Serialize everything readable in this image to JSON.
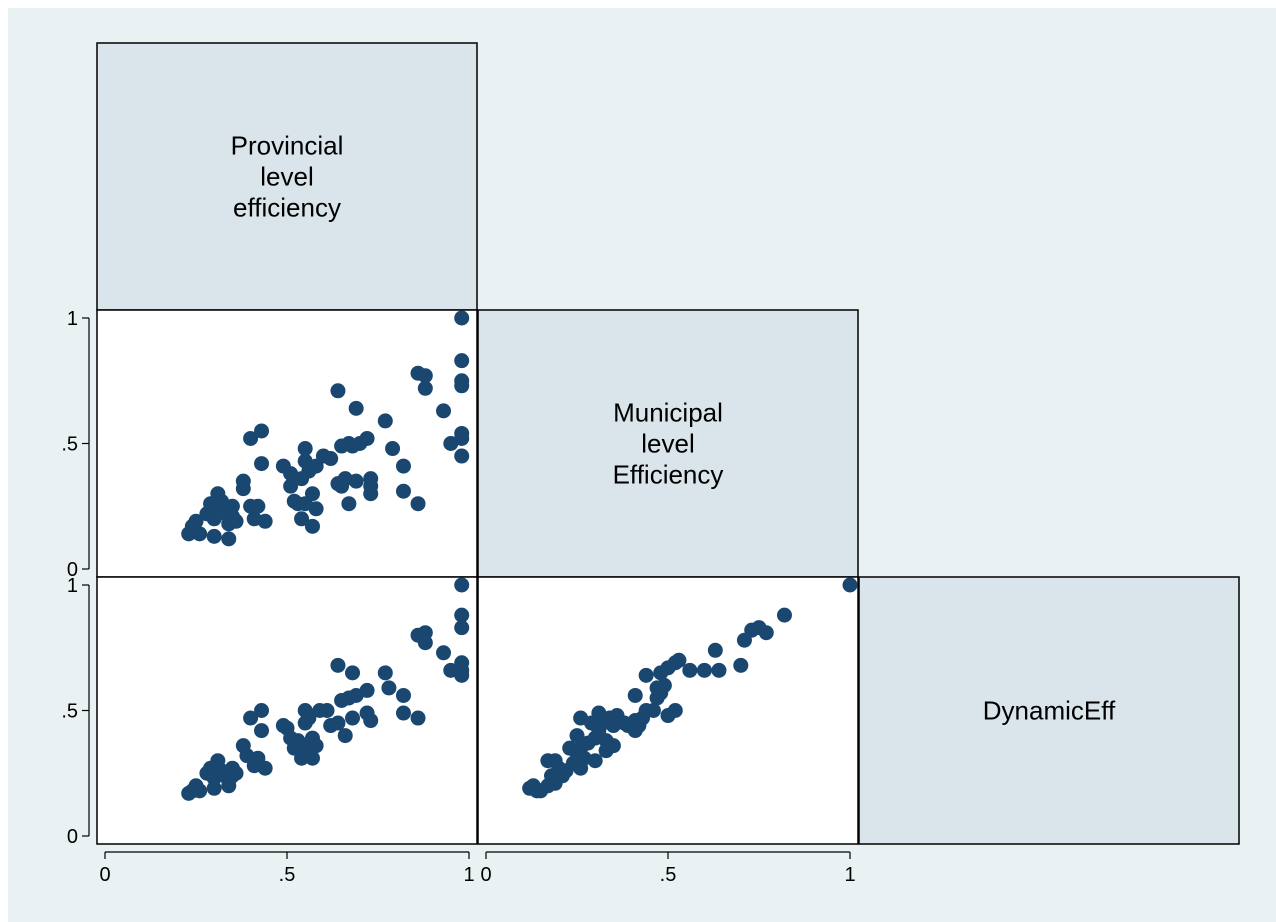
{
  "colors": {
    "background": "#eaf1f3",
    "diagonal_cell": "#d9e5ea",
    "marker": "#1a476f",
    "cell_border": "#000000"
  },
  "chart_data": {
    "type": "scatter",
    "subtype": "scatter-matrix (lower triangle)",
    "variables": [
      {
        "label_lines": [
          "Provincial",
          "level",
          "efficiency"
        ]
      },
      {
        "label_lines": [
          "Municipal",
          "level",
          "Efficiency"
        ]
      },
      {
        "label_lines": [
          "DynamicEff"
        ]
      }
    ],
    "x_ticks": [
      {
        "value": 0,
        "label": "0"
      },
      {
        "value": 0.5,
        "label": ".5"
      },
      {
        "value": 1,
        "label": "1"
      }
    ],
    "y_ticks": [
      {
        "value": 0,
        "label": "0"
      },
      {
        "value": 0.5,
        "label": ".5"
      },
      {
        "value": 1,
        "label": "1"
      }
    ],
    "xlim": [
      0,
      1
    ],
    "ylim": [
      0,
      1
    ],
    "grid": false,
    "panels": [
      {
        "x_var": "Provincial level efficiency",
        "y_var": "Municipal level Efficiency",
        "points": [
          [
            0.23,
            0.14
          ],
          [
            0.24,
            0.17
          ],
          [
            0.25,
            0.19
          ],
          [
            0.26,
            0.14
          ],
          [
            0.28,
            0.22
          ],
          [
            0.29,
            0.26
          ],
          [
            0.3,
            0.13
          ],
          [
            0.3,
            0.2
          ],
          [
            0.31,
            0.22
          ],
          [
            0.31,
            0.3
          ],
          [
            0.32,
            0.27
          ],
          [
            0.33,
            0.23
          ],
          [
            0.34,
            0.18
          ],
          [
            0.34,
            0.12
          ],
          [
            0.35,
            0.21
          ],
          [
            0.35,
            0.25
          ],
          [
            0.36,
            0.19
          ],
          [
            0.38,
            0.35
          ],
          [
            0.38,
            0.32
          ],
          [
            0.4,
            0.52
          ],
          [
            0.4,
            0.25
          ],
          [
            0.41,
            0.2
          ],
          [
            0.42,
            0.25
          ],
          [
            0.43,
            0.55
          ],
          [
            0.43,
            0.42
          ],
          [
            0.44,
            0.19
          ],
          [
            0.49,
            0.41
          ],
          [
            0.51,
            0.38
          ],
          [
            0.51,
            0.33
          ],
          [
            0.52,
            0.27
          ],
          [
            0.53,
            0.26
          ],
          [
            0.54,
            0.2
          ],
          [
            0.54,
            0.36
          ],
          [
            0.55,
            0.26
          ],
          [
            0.55,
            0.43
          ],
          [
            0.55,
            0.48
          ],
          [
            0.56,
            0.39
          ],
          [
            0.57,
            0.17
          ],
          [
            0.57,
            0.3
          ],
          [
            0.58,
            0.24
          ],
          [
            0.58,
            0.41
          ],
          [
            0.6,
            0.45
          ],
          [
            0.62,
            0.44
          ],
          [
            0.64,
            0.71
          ],
          [
            0.64,
            0.34
          ],
          [
            0.65,
            0.33
          ],
          [
            0.65,
            0.49
          ],
          [
            0.66,
            0.36
          ],
          [
            0.67,
            0.26
          ],
          [
            0.67,
            0.5
          ],
          [
            0.68,
            0.49
          ],
          [
            0.69,
            0.64
          ],
          [
            0.69,
            0.35
          ],
          [
            0.7,
            0.5
          ],
          [
            0.72,
            0.52
          ],
          [
            0.73,
            0.33
          ],
          [
            0.73,
            0.3
          ],
          [
            0.73,
            0.36
          ],
          [
            0.77,
            0.59
          ],
          [
            0.79,
            0.48
          ],
          [
            0.82,
            0.41
          ],
          [
            0.82,
            0.31
          ],
          [
            0.86,
            0.26
          ],
          [
            0.86,
            0.78
          ],
          [
            0.88,
            0.77
          ],
          [
            0.88,
            0.72
          ],
          [
            0.93,
            0.63
          ],
          [
            0.95,
            0.5
          ],
          [
            0.98,
            1.0
          ],
          [
            0.98,
            0.83
          ],
          [
            0.98,
            0.75
          ],
          [
            0.98,
            0.73
          ],
          [
            0.98,
            0.54
          ],
          [
            0.98,
            0.52
          ],
          [
            0.98,
            0.45
          ]
        ]
      },
      {
        "x_var": "Provincial level efficiency",
        "y_var": "DynamicEff",
        "points": [
          [
            0.23,
            0.17
          ],
          [
            0.24,
            0.18
          ],
          [
            0.25,
            0.2
          ],
          [
            0.26,
            0.18
          ],
          [
            0.28,
            0.25
          ],
          [
            0.29,
            0.27
          ],
          [
            0.3,
            0.19
          ],
          [
            0.3,
            0.23
          ],
          [
            0.31,
            0.26
          ],
          [
            0.31,
            0.3
          ],
          [
            0.32,
            0.26
          ],
          [
            0.33,
            0.24
          ],
          [
            0.34,
            0.2
          ],
          [
            0.34,
            0.22
          ],
          [
            0.35,
            0.27
          ],
          [
            0.35,
            0.24
          ],
          [
            0.36,
            0.25
          ],
          [
            0.38,
            0.36
          ],
          [
            0.39,
            0.32
          ],
          [
            0.4,
            0.47
          ],
          [
            0.41,
            0.28
          ],
          [
            0.42,
            0.31
          ],
          [
            0.43,
            0.5
          ],
          [
            0.43,
            0.42
          ],
          [
            0.44,
            0.27
          ],
          [
            0.49,
            0.44
          ],
          [
            0.5,
            0.43
          ],
          [
            0.51,
            0.39
          ],
          [
            0.52,
            0.35
          ],
          [
            0.53,
            0.38
          ],
          [
            0.54,
            0.31
          ],
          [
            0.54,
            0.36
          ],
          [
            0.55,
            0.5
          ],
          [
            0.55,
            0.45
          ],
          [
            0.56,
            0.47
          ],
          [
            0.56,
            0.34
          ],
          [
            0.57,
            0.39
          ],
          [
            0.57,
            0.31
          ],
          [
            0.58,
            0.36
          ],
          [
            0.59,
            0.5
          ],
          [
            0.61,
            0.5
          ],
          [
            0.62,
            0.44
          ],
          [
            0.64,
            0.68
          ],
          [
            0.64,
            0.45
          ],
          [
            0.65,
            0.54
          ],
          [
            0.66,
            0.4
          ],
          [
            0.67,
            0.55
          ],
          [
            0.68,
            0.65
          ],
          [
            0.68,
            0.47
          ],
          [
            0.69,
            0.56
          ],
          [
            0.72,
            0.58
          ],
          [
            0.72,
            0.49
          ],
          [
            0.73,
            0.46
          ],
          [
            0.77,
            0.65
          ],
          [
            0.78,
            0.59
          ],
          [
            0.82,
            0.56
          ],
          [
            0.82,
            0.49
          ],
          [
            0.86,
            0.47
          ],
          [
            0.86,
            0.8
          ],
          [
            0.88,
            0.81
          ],
          [
            0.88,
            0.77
          ],
          [
            0.93,
            0.73
          ],
          [
            0.95,
            0.66
          ],
          [
            0.98,
            1.0
          ],
          [
            0.98,
            0.88
          ],
          [
            0.98,
            0.83
          ],
          [
            0.98,
            0.69
          ],
          [
            0.98,
            0.66
          ],
          [
            0.98,
            0.64
          ]
        ]
      },
      {
        "x_var": "Municipal level Efficiency",
        "y_var": "DynamicEff",
        "points": [
          [
            0.12,
            0.19
          ],
          [
            0.13,
            0.2
          ],
          [
            0.14,
            0.18
          ],
          [
            0.15,
            0.18
          ],
          [
            0.17,
            0.3
          ],
          [
            0.17,
            0.2
          ],
          [
            0.18,
            0.24
          ],
          [
            0.19,
            0.3
          ],
          [
            0.19,
            0.21
          ],
          [
            0.2,
            0.27
          ],
          [
            0.21,
            0.24
          ],
          [
            0.22,
            0.26
          ],
          [
            0.23,
            0.35
          ],
          [
            0.24,
            0.29
          ],
          [
            0.25,
            0.33
          ],
          [
            0.25,
            0.4
          ],
          [
            0.26,
            0.47
          ],
          [
            0.26,
            0.35
          ],
          [
            0.26,
            0.27
          ],
          [
            0.27,
            0.31
          ],
          [
            0.28,
            0.37
          ],
          [
            0.29,
            0.45
          ],
          [
            0.3,
            0.3
          ],
          [
            0.3,
            0.39
          ],
          [
            0.31,
            0.42
          ],
          [
            0.31,
            0.49
          ],
          [
            0.32,
            0.45
          ],
          [
            0.33,
            0.38
          ],
          [
            0.33,
            0.34
          ],
          [
            0.34,
            0.47
          ],
          [
            0.35,
            0.44
          ],
          [
            0.35,
            0.36
          ],
          [
            0.36,
            0.48
          ],
          [
            0.38,
            0.45
          ],
          [
            0.39,
            0.44
          ],
          [
            0.41,
            0.56
          ],
          [
            0.41,
            0.46
          ],
          [
            0.41,
            0.42
          ],
          [
            0.42,
            0.44
          ],
          [
            0.43,
            0.47
          ],
          [
            0.44,
            0.5
          ],
          [
            0.44,
            0.64
          ],
          [
            0.46,
            0.5
          ],
          [
            0.47,
            0.59
          ],
          [
            0.47,
            0.55
          ],
          [
            0.48,
            0.65
          ],
          [
            0.48,
            0.57
          ],
          [
            0.49,
            0.6
          ],
          [
            0.5,
            0.48
          ],
          [
            0.5,
            0.67
          ],
          [
            0.52,
            0.69
          ],
          [
            0.52,
            0.5
          ],
          [
            0.53,
            0.7
          ],
          [
            0.56,
            0.66
          ],
          [
            0.6,
            0.66
          ],
          [
            0.63,
            0.74
          ],
          [
            0.64,
            0.66
          ],
          [
            0.7,
            0.68
          ],
          [
            0.71,
            0.78
          ],
          [
            0.73,
            0.82
          ],
          [
            0.75,
            0.83
          ],
          [
            0.77,
            0.81
          ],
          [
            0.82,
            0.88
          ],
          [
            1.0,
            1.0
          ]
        ]
      }
    ]
  }
}
